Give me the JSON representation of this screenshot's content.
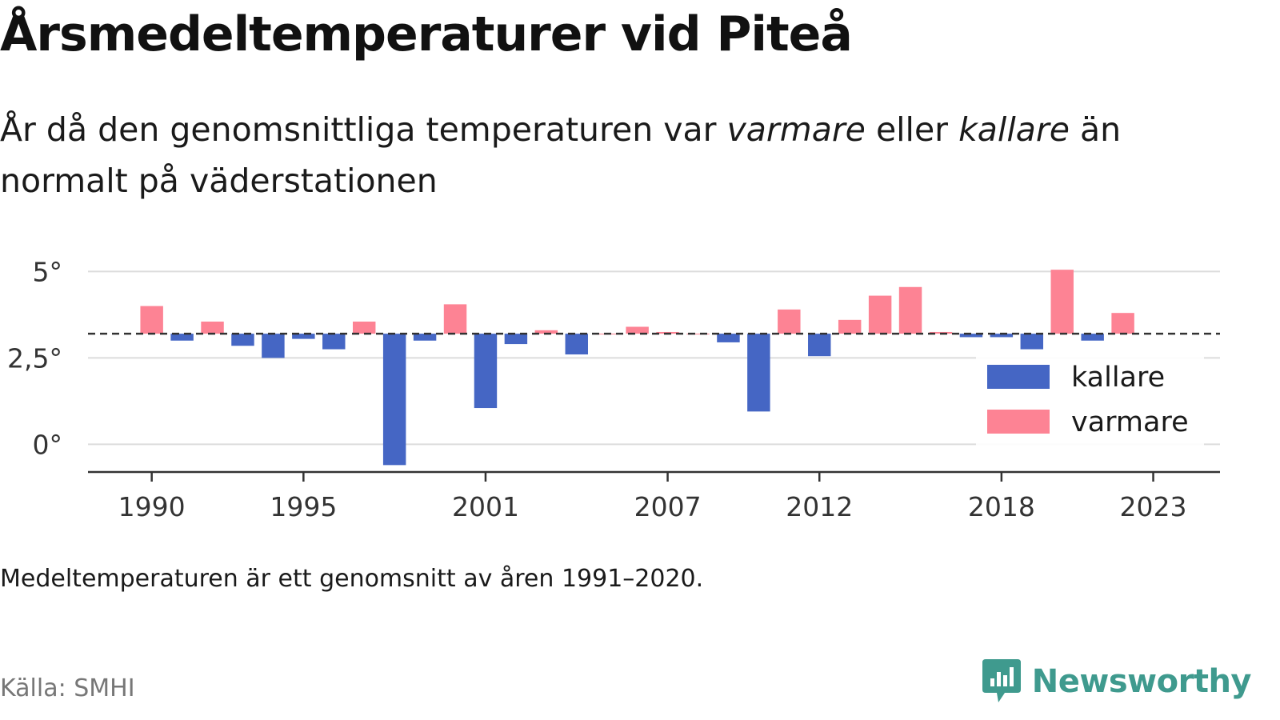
{
  "header": {
    "title": "Årsmedeltemperaturer vid Piteå",
    "subtitle_part1": "År då den genomsnittliga temperaturen var ",
    "subtitle_warm": "varmare",
    "subtitle_part2": " eller ",
    "subtitle_cold": "kallare",
    "subtitle_part3": " än normalt på väderstationen"
  },
  "footer": {
    "note": "Medeltemperaturen är ett genomsnitt av åren 1991–2020.",
    "source": "Källa: SMHI",
    "brand": "Newsworthy"
  },
  "colors": {
    "cold": "#4566c4",
    "warm": "#fd8394",
    "brand": "#3f9a8e"
  },
  "chart_data": {
    "type": "bar",
    "categories": [
      1990,
      1991,
      1992,
      1993,
      1994,
      1995,
      1996,
      1997,
      1998,
      1999,
      2000,
      2001,
      2002,
      2003,
      2004,
      2005,
      2006,
      2007,
      2008,
      2009,
      2010,
      2011,
      2012,
      2013,
      2014,
      2015,
      2016,
      2017,
      2018,
      2019,
      2020,
      2021,
      2022
    ],
    "values": [
      4.0,
      3.0,
      3.55,
      2.85,
      2.5,
      3.05,
      2.75,
      3.55,
      -0.6,
      3.0,
      4.05,
      1.05,
      2.9,
      3.3,
      2.6,
      3.2,
      3.4,
      3.25,
      3.2,
      2.95,
      0.95,
      3.9,
      2.55,
      3.6,
      4.3,
      4.55,
      3.25,
      3.1,
      3.1,
      2.75,
      5.05,
      3.0,
      3.8
    ],
    "baseline": 3.2,
    "series": [
      {
        "name": "kallare",
        "color": "#4566c4"
      },
      {
        "name": "varmare",
        "color": "#fd8394"
      }
    ],
    "y_ticks": [
      0,
      2.5,
      5
    ],
    "y_tick_labels": [
      "0°",
      "2,5°",
      "5°"
    ],
    "x_ticks": [
      1990,
      1995,
      2001,
      2007,
      2012,
      2018,
      2023
    ],
    "ylim": [
      -0.8,
      5.1
    ],
    "xlim": [
      1987.9,
      2025.2
    ],
    "grid": true,
    "legend_position": "right"
  }
}
